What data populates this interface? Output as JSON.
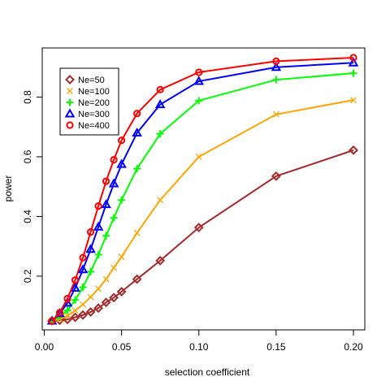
{
  "chart_data": {
    "type": "line",
    "xlabel": "selection coefficient",
    "ylabel": "power",
    "xlim": [
      0.0,
      0.2
    ],
    "ylim": [
      0.05,
      0.95
    ],
    "x_ticks": [
      "0.00",
      "0.05",
      "0.10",
      "0.15",
      "0.20"
    ],
    "y_ticks": [
      "0.2",
      "0.4",
      "0.6",
      "0.8"
    ],
    "grid": false,
    "legend_position": "top-left",
    "x": [
      0.005,
      0.01,
      0.015,
      0.02,
      0.025,
      0.03,
      0.035,
      0.04,
      0.045,
      0.05,
      0.06,
      0.075,
      0.1,
      0.15,
      0.2
    ],
    "series": [
      {
        "name": "Ne=50",
        "color": "#A52A2A",
        "marker": "diamond",
        "values": [
          0.05,
          0.052,
          0.055,
          0.062,
          0.07,
          0.08,
          0.093,
          0.112,
          0.128,
          0.148,
          0.19,
          0.252,
          0.363,
          0.535,
          0.622
        ]
      },
      {
        "name": "Ne=100",
        "color": "#FFA500",
        "marker": "cross",
        "values": [
          0.05,
          0.056,
          0.067,
          0.085,
          0.105,
          0.13,
          0.158,
          0.19,
          0.228,
          0.265,
          0.345,
          0.455,
          0.6,
          0.742,
          0.79
        ]
      },
      {
        "name": "Ne=200",
        "color": "#00FF00",
        "marker": "plus",
        "values": [
          0.05,
          0.065,
          0.085,
          0.12,
          0.163,
          0.215,
          0.272,
          0.335,
          0.395,
          0.455,
          0.56,
          0.677,
          0.788,
          0.858,
          0.88
        ]
      },
      {
        "name": "Ne=300",
        "color": "#0000FF",
        "marker": "triangle",
        "values": [
          0.05,
          0.075,
          0.11,
          0.16,
          0.222,
          0.29,
          0.365,
          0.44,
          0.51,
          0.575,
          0.68,
          0.775,
          0.853,
          0.9,
          0.915
        ]
      },
      {
        "name": "Ne=400",
        "color": "#FF0000",
        "marker": "circle",
        "values": [
          0.05,
          0.078,
          0.125,
          0.187,
          0.262,
          0.348,
          0.435,
          0.518,
          0.59,
          0.655,
          0.745,
          0.825,
          0.883,
          0.92,
          0.932
        ]
      }
    ]
  }
}
